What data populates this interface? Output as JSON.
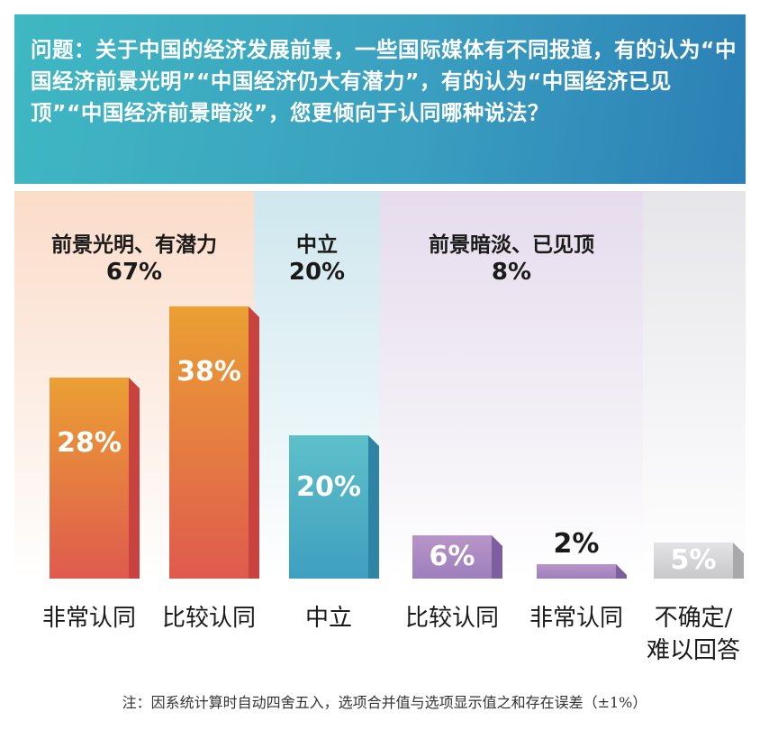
{
  "question": "问题：关于中国的经济发展前景，一些国际媒体有不同报道，有的认为“中国经济前景光明”“中国经济仍大有潜力”，有的认为“中国经济已见顶”“中国经济前景暗淡”，您更倾向于认同哪种说法？",
  "footnote": "注：因系统计算时自动四舍五入，选项合并值与选项显示值之和存在误差（±1%）",
  "groups": [
    {
      "label": "前景光明、有潜力",
      "value": "67%",
      "color": "#fbdcc9"
    },
    {
      "label": "中立",
      "value": "20%",
      "color": "#cfe7ee"
    },
    {
      "label": "前景暗淡、已见顶",
      "value": "8%",
      "color": "#e6dced"
    }
  ],
  "chart_data": {
    "type": "bar",
    "categories": [
      "非常认同",
      "比较认同",
      "中立",
      "比较认同",
      "非常认同",
      "不确定/\n难以回答"
    ],
    "values": [
      28,
      38,
      20,
      6,
      2,
      5
    ],
    "value_labels": [
      "28%",
      "38%",
      "20%",
      "6%",
      "2%",
      "5%"
    ],
    "ylim": [
      0,
      40
    ],
    "grid": false,
    "colors": [
      {
        "top": "#eba033",
        "bottom": "#df5a4e",
        "side": "#c8423f"
      },
      {
        "top": "#eba033",
        "bottom": "#df5a4e",
        "side": "#c8423f"
      },
      {
        "top": "#5ec0c9",
        "bottom": "#3f9fc0",
        "side": "#2f84a6"
      },
      {
        "top": "#b895c6",
        "bottom": "#9d7fbc",
        "side": "#7d5f9f"
      },
      {
        "top": "#b895c6",
        "bottom": "#9d7fbc",
        "side": "#7d5f9f"
      },
      {
        "top": "#e3e3e5",
        "bottom": "#c8c8cb",
        "side": "#a9a9ad"
      }
    ]
  }
}
